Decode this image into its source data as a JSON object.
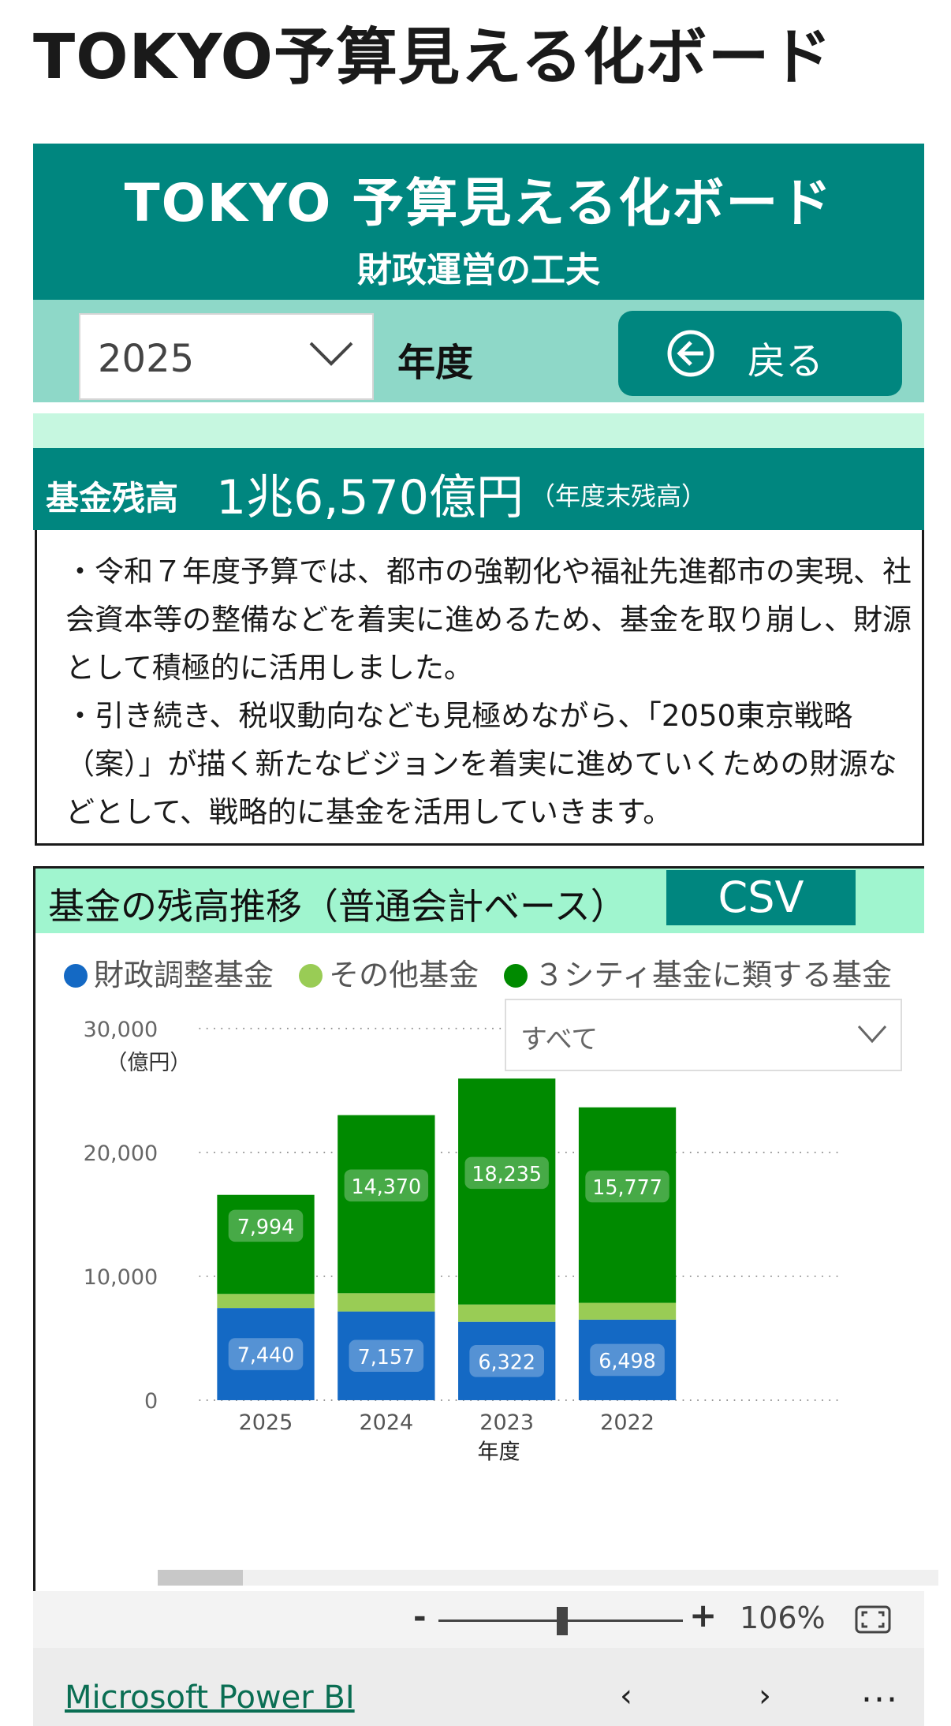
{
  "page": {
    "title": "TOKYO予算見える化ボード"
  },
  "report": {
    "header_title": "TOKYO 予算見える化ボード",
    "header_subtitle": "財政運営の工夫",
    "year_select": {
      "value": "2025"
    },
    "year_label": "年度",
    "back_button": {
      "label": "戻る"
    },
    "fund": {
      "label": "基金残高",
      "value": "1兆6,570億円",
      "note": "（年度末残高）"
    },
    "description": [
      "・令和７年度予算では、都市の強靭化や福祉先進都市の実現、社会資本等の整備などを着実に進めるため、基金を取り崩し、財源として積極的に活用しました。",
      "・引き続き、税収動向なども見極めながら、「2050東京戦略（案）」が描く新たなビジョンを着実に進めていくための財源などとして、戦略的に基金を活用していきます。"
    ],
    "chart_panel": {
      "title": "基金の残高推移（普通会計ベース）",
      "csv_button": "CSV",
      "filter": {
        "value": "すべて"
      }
    }
  },
  "colors": {
    "teal": "#00867f",
    "series_zaisei": "#1469c4",
    "series_other": "#99cc55",
    "series_3city": "#008a00"
  },
  "chart_data": {
    "type": "bar",
    "stacked": true,
    "categories": [
      "2025",
      "2024",
      "2023",
      "2022"
    ],
    "xlabel": "年度",
    "ylabel": "（億円）",
    "ylim": [
      0,
      30000
    ],
    "yticks": [
      0,
      10000,
      20000,
      30000
    ],
    "ytick_labels": [
      "0",
      "10,000",
      "20,000",
      "30,000"
    ],
    "grid": "horizontal-dotted",
    "legend": "top-left",
    "series": [
      {
        "name": "財政調整基金",
        "color": "#1469c4",
        "values": [
          7440,
          7157,
          6322,
          6498
        ],
        "labels": [
          "7,440",
          "7,157",
          "6,322",
          "6,498"
        ]
      },
      {
        "name": "その他基金",
        "color": "#99cc55",
        "values": [
          1136,
          1480,
          1400,
          1360
        ],
        "labels": null
      },
      {
        "name": "３シティ基金に類する基金",
        "color": "#008a00",
        "values": [
          7994,
          14370,
          18235,
          15777
        ],
        "labels": [
          "7,994",
          "14,370",
          "18,235",
          "15,777"
        ]
      }
    ]
  },
  "toolbar": {
    "zoom_minus": "-",
    "zoom_plus": "+",
    "zoom_level": "106%"
  },
  "footer": {
    "brand": "Microsoft Power BI",
    "prev": "‹",
    "next": "›",
    "more": "..."
  }
}
